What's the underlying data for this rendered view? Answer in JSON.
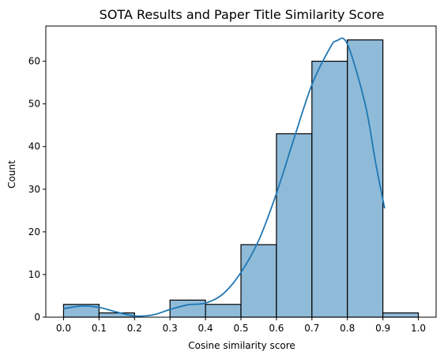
{
  "chart_data": {
    "type": "bar",
    "title": "SOTA Results and Paper Title Similarity Score",
    "xlabel": "Cosine similarity score",
    "ylabel": "Count",
    "xlim": [
      -0.05,
      1.05
    ],
    "ylim": [
      0,
      68.25
    ],
    "x_ticks": [
      0.0,
      0.1,
      0.2,
      0.3,
      0.4,
      0.5,
      0.6,
      0.7,
      0.8,
      0.9,
      1.0
    ],
    "x_tick_labels": [
      "0.0",
      "0.1",
      "0.2",
      "0.3",
      "0.4",
      "0.5",
      "0.6",
      "0.7",
      "0.8",
      "0.9",
      "1.0"
    ],
    "y_ticks": [
      0,
      10,
      20,
      30,
      40,
      50,
      60
    ],
    "y_tick_labels": [
      "0",
      "10",
      "20",
      "30",
      "40",
      "50",
      "60"
    ],
    "bins": [
      {
        "x0": 0.0,
        "x1": 0.1,
        "count": 3
      },
      {
        "x0": 0.1,
        "x1": 0.2,
        "count": 1
      },
      {
        "x0": 0.2,
        "x1": 0.3,
        "count": 0
      },
      {
        "x0": 0.3,
        "x1": 0.4,
        "count": 4
      },
      {
        "x0": 0.4,
        "x1": 0.5,
        "count": 3
      },
      {
        "x0": 0.5,
        "x1": 0.6,
        "count": 17
      },
      {
        "x0": 0.6,
        "x1": 0.7,
        "count": 43
      },
      {
        "x0": 0.7,
        "x1": 0.8,
        "count": 60
      },
      {
        "x0": 0.8,
        "x1": 0.9,
        "count": 65
      },
      {
        "x0": 0.9,
        "x1": 1.0,
        "count": 1
      }
    ],
    "kde": {
      "x": [
        0.0,
        0.05,
        0.1,
        0.15,
        0.2,
        0.25,
        0.3,
        0.35,
        0.4,
        0.45,
        0.5,
        0.55,
        0.6,
        0.65,
        0.7,
        0.75,
        0.77,
        0.8,
        0.85,
        0.88,
        0.905
      ],
      "y": [
        2.0,
        2.6,
        2.3,
        1.2,
        0.3,
        0.5,
        1.8,
        2.9,
        3.3,
        5.5,
        10.5,
        18.0,
        29.0,
        42.0,
        54.5,
        63.0,
        64.8,
        64.0,
        50.0,
        36.0,
        25.5
      ]
    },
    "bar_color": "#8fbbd9",
    "bar_edge_color": "#000000",
    "line_color": "#1f77b4",
    "grid": false,
    "legend": "none"
  }
}
